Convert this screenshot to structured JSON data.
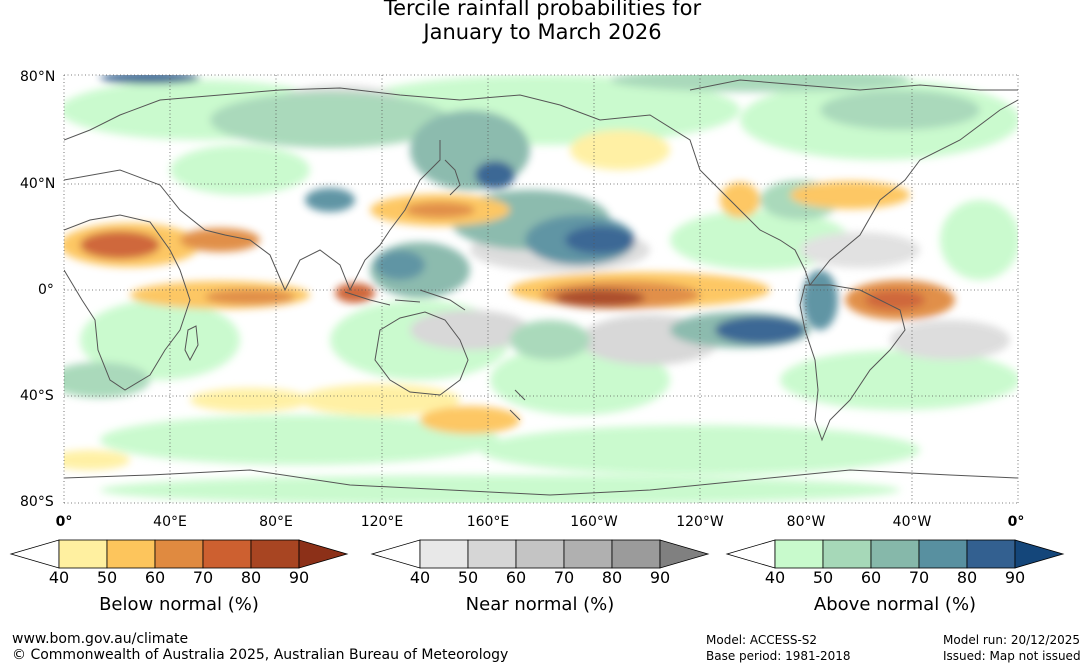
{
  "title": {
    "line1": "Tercile rainfall probabilities for",
    "line2": "January to March 2026"
  },
  "latitude_labels": [
    "80°N",
    "40°N",
    "0°",
    "40°S",
    "80°S"
  ],
  "longitude_labels": [
    "0°",
    "40°E",
    "80°E",
    "120°E",
    "160°E",
    "160°W",
    "120°W",
    "80°W",
    "40°W",
    "0°"
  ],
  "colorbars": [
    {
      "title": "Below normal (%)",
      "ticks": [
        "40",
        "50",
        "60",
        "70",
        "80",
        "90"
      ],
      "colors": [
        "#ffffff",
        "#fff0a0",
        "#fdc55c",
        "#e08a40",
        "#cd6030",
        "#a84522",
        "#8c3018"
      ]
    },
    {
      "title": "Near normal (%)",
      "ticks": [
        "40",
        "50",
        "60",
        "70",
        "80",
        "90"
      ],
      "colors": [
        "#ffffff",
        "#e8e8e8",
        "#d6d6d6",
        "#c4c4c4",
        "#b0b0b0",
        "#9b9b9b",
        "#808080"
      ]
    },
    {
      "title": "Above normal (%)",
      "ticks": [
        "40",
        "50",
        "60",
        "70",
        "80",
        "90"
      ],
      "colors": [
        "#ffffff",
        "#c8facc",
        "#a6d8b8",
        "#86b8aa",
        "#5890a0",
        "#336090",
        "#14467a"
      ]
    }
  ],
  "footer": {
    "url": "www.bom.gov.au/climate",
    "copyright": "© Commonwealth of Australia 2025, Australian Bureau of Meteorology",
    "model": "Model: ACCESS-S2",
    "base_period": "Base period: 1981-2018",
    "model_run": "Model run: 20/12/2025",
    "issued": "Issued: Map not issued"
  }
}
